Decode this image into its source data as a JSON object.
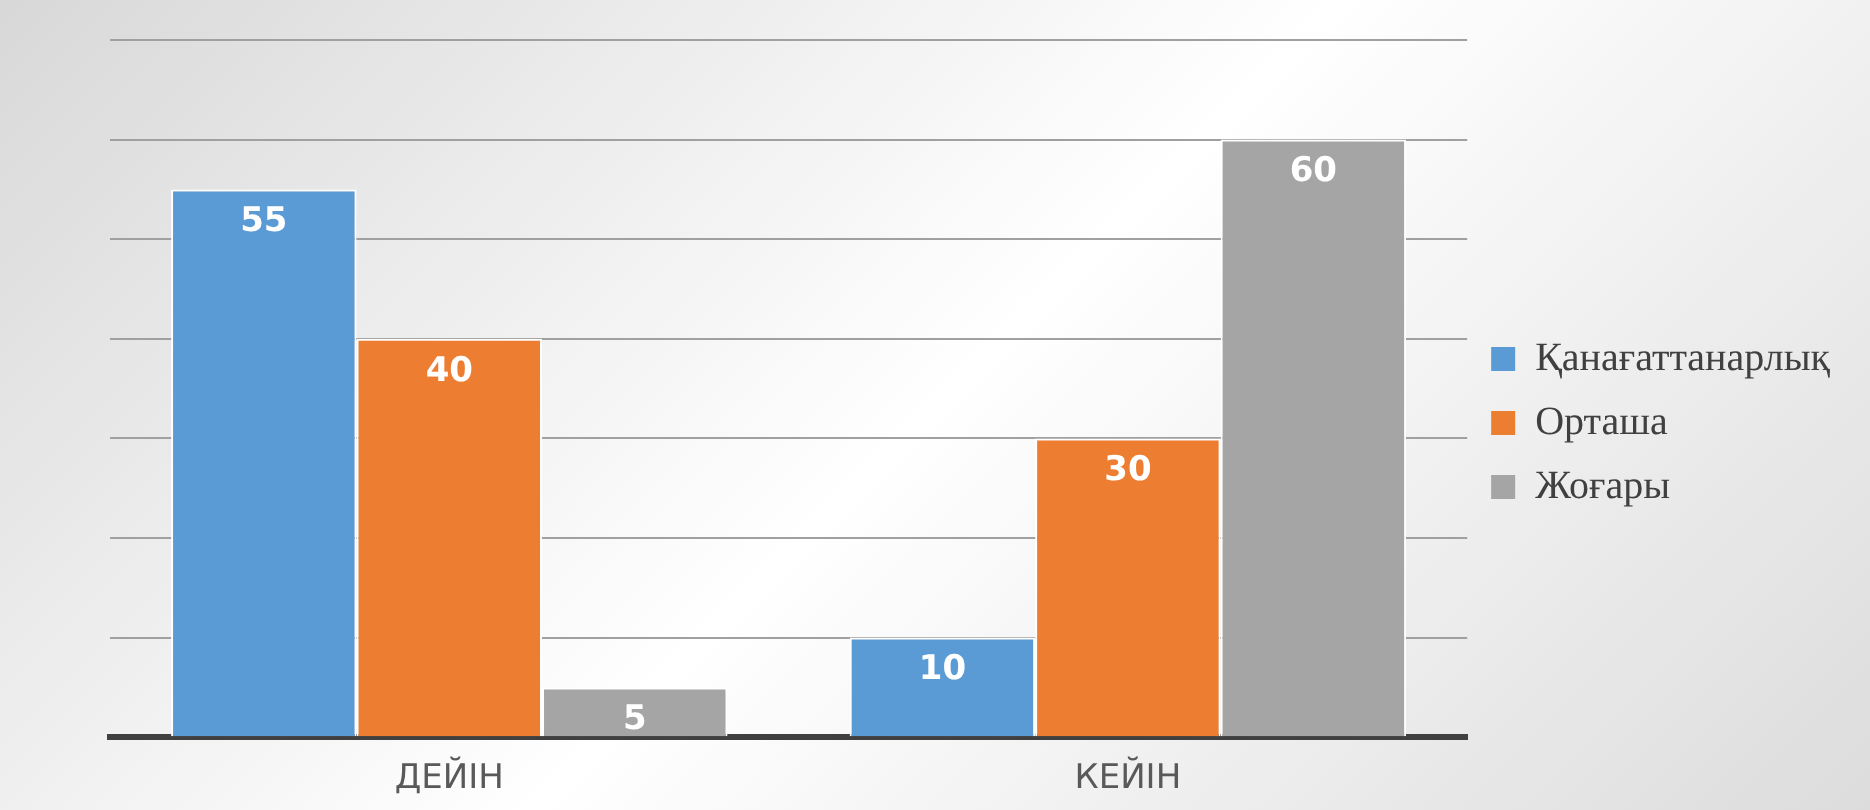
{
  "chart_data": {
    "type": "bar",
    "categories": [
      "ДЕЙІН",
      "КЕЙІН"
    ],
    "series": [
      {
        "name": "Қанағаттанарлық",
        "color": "#5b9bd5",
        "values": [
          55,
          10
        ]
      },
      {
        "name": "Орташа",
        "color": "#ed7d31",
        "values": [
          40,
          30
        ]
      },
      {
        "name": "Жоғары",
        "color": "#a5a5a5",
        "values": [
          5,
          60
        ]
      }
    ],
    "ylim": [
      0,
      70
    ],
    "yticks": [
      {
        "value": 0,
        "label": null
      },
      {
        "value": 10,
        "label": null
      },
      {
        "value": 20,
        "label": null
      },
      {
        "value": 30,
        "label": null
      },
      {
        "value": 40,
        "label": null
      },
      {
        "value": 50,
        "label": null
      },
      {
        "value": 60,
        "label": null
      },
      {
        "value": 70,
        "label": null
      }
    ],
    "grid": "y",
    "legend": "right",
    "tick_labels": "x",
    "data_labels": true
  }
}
